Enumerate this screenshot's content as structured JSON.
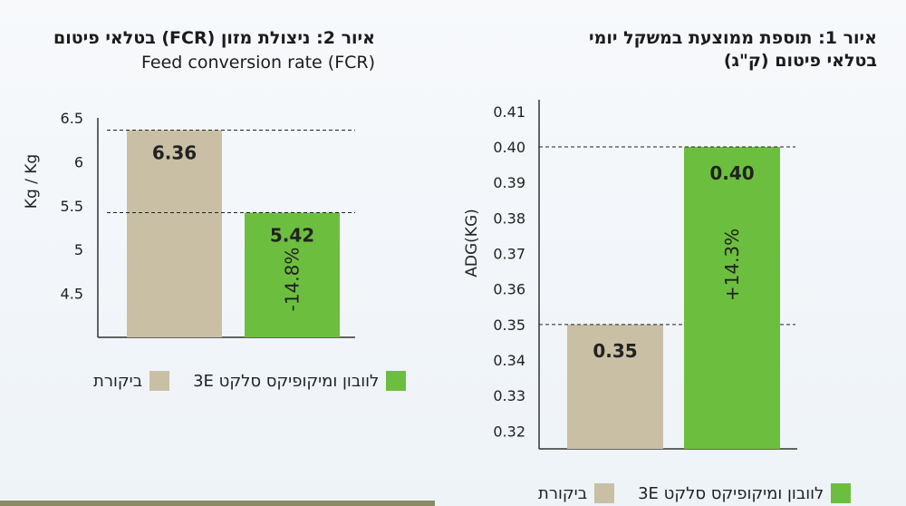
{
  "colors": {
    "control": "#c9bfa4",
    "treatment": "#6cbf3e",
    "axis": "#333333"
  },
  "chart_data": [
    {
      "type": "bar",
      "title": "איור 2: ניצולת מזון (FCR) בטלאי פיטום",
      "subtitle": "Feed conversion rate (FCR)",
      "xlabel": "",
      "ylabel": "Kg / Kg",
      "ylim": [
        4.0,
        6.5
      ],
      "ticks": [
        "6.5",
        "6",
        "5.5",
        "5",
        "4.5"
      ],
      "tick_values": [
        6.5,
        6.0,
        5.5,
        5.0,
        4.5
      ],
      "categories": [
        "ביקורת",
        "לוובון ומיקופיקס סלקט 3E"
      ],
      "values": [
        6.36,
        5.42
      ],
      "value_labels": [
        "6.36",
        "5.42"
      ],
      "annotation": "-14.8%",
      "grid": false,
      "legend": {
        "position": "bottom",
        "control": "ביקורת",
        "treatment": "לוובון ומיקופיקס סלקט 3E"
      }
    },
    {
      "type": "bar",
      "title_line1": "איור 1: תוספת ממוצעת במשקל יומי",
      "title_line2": "בטלאי פיטום (ק\"ג)",
      "xlabel": "",
      "ylabel": "ADG(KG)",
      "ylim": [
        0.315,
        0.41
      ],
      "ticks": [
        "0.41",
        "0.40",
        "0.39",
        "0.38",
        "0.37",
        "0.36",
        "0.35",
        "0.34",
        "0.33",
        "0.32"
      ],
      "tick_values": [
        0.41,
        0.4,
        0.39,
        0.38,
        0.37,
        0.36,
        0.35,
        0.34,
        0.33,
        0.32
      ],
      "categories": [
        "ביקורת",
        "לוובון ומיקופיקס סלקט 3E"
      ],
      "values": [
        0.35,
        0.4
      ],
      "value_labels": [
        "0.35",
        "0.40"
      ],
      "annotation": "+14.3%",
      "grid": false,
      "legend": {
        "position": "bottom",
        "control": "ביקורת",
        "treatment": "לוובון ומיקופיקס סלקט 3E"
      }
    }
  ]
}
